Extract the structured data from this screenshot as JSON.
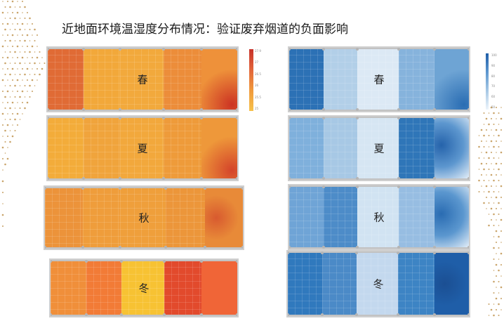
{
  "slide": {
    "title": "近地面环境温湿度分布情况：验证废弃烟道的负面影响"
  },
  "panels": {
    "temperature": [
      {
        "season": "春",
        "colors": [
          "#e06b35",
          "#f2a83a",
          "#f2a93c",
          "#ec8d3a",
          "#ee913a"
        ],
        "hot_spot": "#cc3323"
      },
      {
        "season": "夏",
        "colors": [
          "#f3ac3a",
          "#f0a43c",
          "#f2a83c",
          "#ee9b3a",
          "#ee983a"
        ],
        "hot_spot": "#d4442a"
      },
      {
        "season": "秋",
        "colors": [
          "#ec933a",
          "#ef9d3b",
          "#ef9f3b",
          "#ec963a",
          "#e88a38"
        ],
        "hot_spot": "#d85a2f"
      },
      {
        "season": "冬",
        "colors": [
          "#f08f3a",
          "#f27b36",
          "#f7c233",
          "#e24a2c",
          "#f06537"
        ],
        "hot_spot": "#f06537"
      }
    ],
    "humidity": [
      {
        "season": "春",
        "colors": [
          "#2c71b5",
          "#b2cfe8",
          "#dce9f5",
          "#86b3dc",
          "#6ea4d4"
        ],
        "dark_spot": "#2a6db3"
      },
      {
        "season": "夏",
        "colors": [
          "#7fb0dc",
          "#a7c8e5",
          "#d6e6f3",
          "#2f76b8",
          "#5d97cf"
        ],
        "dark_spot": "#2563ab"
      },
      {
        "season": "秋",
        "colors": [
          "#6fa4d6",
          "#4d8cc8",
          "#d1e3f2",
          "#97bde2",
          "#5b97cf"
        ],
        "dark_spot": "#2a6cb2"
      },
      {
        "season": "冬",
        "colors": [
          "#3079bd",
          "#4b8ac7",
          "#c3d8ee",
          "#3d84c4",
          "#1f5ea8"
        ],
        "dark_spot": "#1b4f93"
      }
    ]
  },
  "colorbars": {
    "temperature": {
      "ticks": [
        "27.9",
        "27",
        "26.5",
        "26",
        "25.5",
        "25"
      ],
      "gradient": [
        "#c7322a",
        "#e2653a",
        "#f09a3c",
        "#f6c14a"
      ]
    },
    "humidity": {
      "ticks": [
        "100",
        "90",
        "80",
        "70",
        "60",
        "50"
      ],
      "gradient": [
        "#1f5ea8",
        "#5d97cf",
        "#a7c8e5",
        "#eef5fb"
      ]
    }
  }
}
